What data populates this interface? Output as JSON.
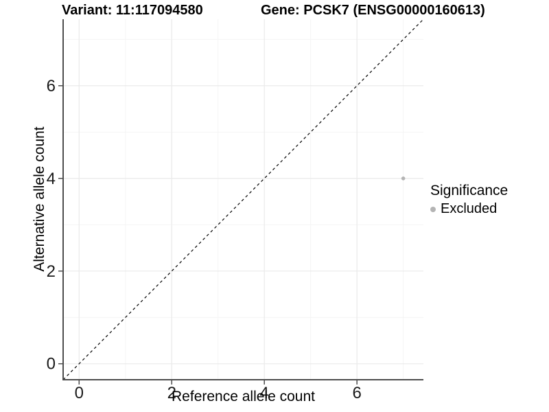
{
  "page": {
    "background": "#ffffff"
  },
  "chart_data": {
    "type": "scatter",
    "title_left": "Variant: 11:117094580",
    "title_right": "Gene: PCSK7 (ENSG00000160613)",
    "xlabel": "Reference allele count",
    "ylabel": "Alternative allele count",
    "xlim": [
      -0.345,
      7.435
    ],
    "ylim": [
      -0.345,
      7.435
    ],
    "xticks": [
      0,
      2,
      4,
      6
    ],
    "yticks": [
      0,
      2,
      4,
      6
    ],
    "xminor_gridlines": [
      1,
      3,
      5,
      7
    ],
    "yminor_gridlines": [
      1,
      3,
      5,
      7
    ],
    "grid": "major and minor, light grey on white background",
    "reference_line": {
      "equation": "y = x",
      "style": "dashed",
      "color": "#000000"
    },
    "series": [
      {
        "name": "Excluded",
        "color": "#b4b4b4",
        "point_radius": 2.8,
        "points": [
          {
            "x": 7,
            "y": 4
          }
        ]
      }
    ],
    "legend": {
      "title": "Significance",
      "position": "right",
      "items": [
        {
          "label": "Excluded",
          "color": "#b4b4b4"
        }
      ]
    },
    "colors": {
      "axis_line": "#4d4d4d",
      "tick_mark": "#4d4d4d",
      "tick_label": "#1a1a1a",
      "major_grid": "#ebebeb",
      "minor_grid": "#f4f4f4"
    }
  }
}
